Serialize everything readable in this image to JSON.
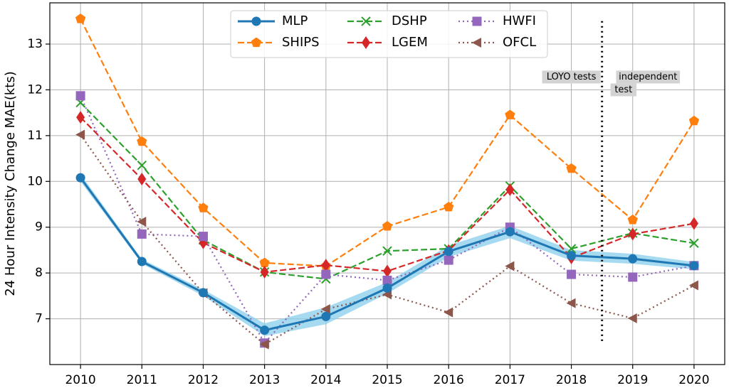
{
  "chart_data": {
    "type": "line",
    "xlabel": "",
    "ylabel": "24 Hour Intensity Change MAE(kts)",
    "x": [
      2010,
      2011,
      2012,
      2013,
      2014,
      2015,
      2016,
      2017,
      2018,
      2019,
      2020
    ],
    "xlim": [
      2009.5,
      2020.5
    ],
    "ylim": [
      6.0,
      13.9
    ],
    "yticks": [
      7,
      8,
      9,
      10,
      11,
      12,
      13
    ],
    "grid": true,
    "legend_position": "top-center",
    "series": [
      {
        "name": "MLP",
        "color": "#1f77b4",
        "linestyle": "solid",
        "marker": "circle",
        "values": [
          10.08,
          8.25,
          7.57,
          6.75,
          7.05,
          7.67,
          8.47,
          8.9,
          8.38,
          8.31,
          8.16
        ],
        "band_lower": [
          10.0,
          8.2,
          7.5,
          6.62,
          6.88,
          7.55,
          8.35,
          8.76,
          8.27,
          8.2,
          8.08
        ],
        "band_upper": [
          10.16,
          8.3,
          7.64,
          6.9,
          7.25,
          7.8,
          8.6,
          9.03,
          8.5,
          8.42,
          8.24
        ],
        "band_color": "#87ceeb"
      },
      {
        "name": "SHIPS",
        "color": "#ff7f0e",
        "linestyle": "dashed",
        "marker": "pentagon",
        "values": [
          13.55,
          10.87,
          9.42,
          8.22,
          8.15,
          9.02,
          9.44,
          11.45,
          10.28,
          9.16,
          11.32
        ]
      },
      {
        "name": "DSHP",
        "color": "#2ca02c",
        "linestyle": "dashed",
        "marker": "x",
        "values": [
          11.72,
          10.35,
          8.72,
          8.02,
          7.87,
          8.48,
          8.53,
          9.9,
          8.53,
          8.87,
          8.65
        ]
      },
      {
        "name": "LGEM",
        "color": "#d62728",
        "linestyle": "dashed",
        "marker": "diamond",
        "values": [
          11.4,
          10.05,
          8.66,
          8.02,
          8.17,
          8.04,
          8.49,
          9.82,
          8.33,
          8.85,
          9.08
        ]
      },
      {
        "name": "HWFI",
        "color": "#9467bd",
        "linestyle": "dotted",
        "marker": "square",
        "values": [
          11.87,
          8.85,
          8.8,
          6.47,
          7.97,
          7.84,
          8.28,
          9.0,
          7.97,
          7.91,
          8.16
        ]
      },
      {
        "name": "OFCL",
        "color": "#8c564b",
        "linestyle": "dotted",
        "marker": "triangle-left",
        "values": [
          11.02,
          9.12,
          7.56,
          6.44,
          7.21,
          7.53,
          7.14,
          8.15,
          7.34,
          7.01,
          7.73
        ]
      }
    ],
    "divider": {
      "x": 2018.5,
      "y_from": 6.5,
      "y_to": 13.5,
      "linestyle": "dotted",
      "color": "#000000"
    },
    "annotations": [
      {
        "text": "LOYO tests",
        "x": 2018.0,
        "y": 12.28,
        "box_color": "#d3d3d3"
      },
      {
        "text": "independent",
        "x": 2019.25,
        "y": 12.28,
        "box_color": "#d3d3d3"
      },
      {
        "text": "test",
        "x": 2018.85,
        "y": 12.0,
        "box_color": "#d3d3d3"
      }
    ]
  }
}
